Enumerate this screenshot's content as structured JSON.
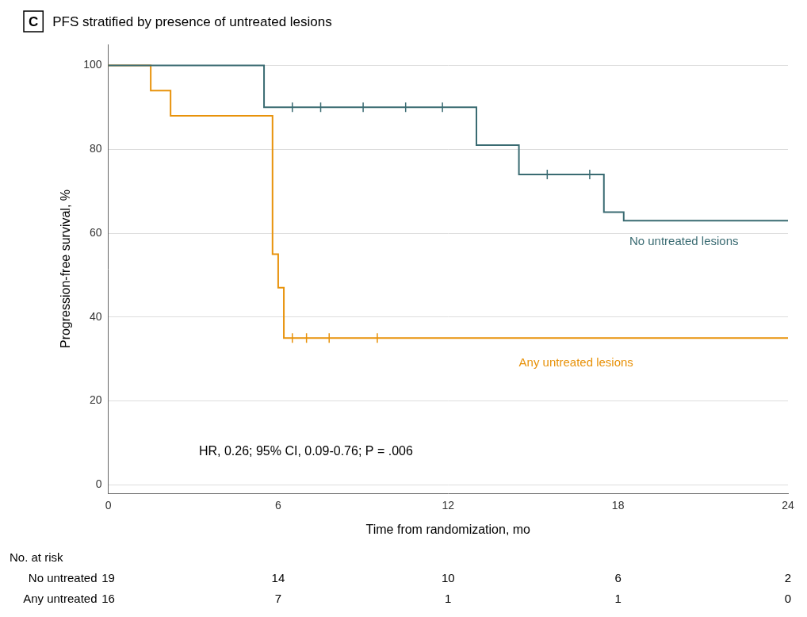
{
  "chart_data": {
    "type": "line",
    "title": "PFS stratified by presence of untreated lesions",
    "panel_label": "C",
    "x_label": "Time from randomization, mo",
    "y_label": "Progression-free survival, %",
    "xlim": [
      0,
      24
    ],
    "xticks": [
      0,
      6,
      12,
      18,
      24
    ],
    "ylim": [
      -2,
      105
    ],
    "yticks": [
      0,
      20,
      40,
      60,
      80,
      100
    ],
    "grid": "y",
    "series": [
      {
        "name": "No untreated lesions",
        "color": "#3a6b72",
        "line_style": "steps",
        "marker": "|",
        "x": [
          0,
          5.5,
          5.5,
          6.2,
          9.0,
          11.0,
          13.0,
          13.0,
          14.5,
          14.5,
          17.5,
          17.5,
          18.2,
          18.2,
          24.0
        ],
        "values": [
          100,
          100,
          90,
          90,
          90,
          90,
          90,
          81,
          81,
          74,
          74,
          65,
          65,
          63,
          63
        ],
        "censors_x": [
          6.5,
          7.5,
          9.0,
          10.5,
          11.8,
          15.5,
          17.0
        ],
        "censors_values": [
          90,
          90,
          90,
          90,
          90,
          74,
          74
        ],
        "label_x": 18.4,
        "label_y": 58
      },
      {
        "name": "Any untreated lesions",
        "color": "#e8920a",
        "line_style": "steps",
        "marker": "|",
        "x": [
          0,
          1.5,
          1.5,
          2.2,
          2.2,
          5.8,
          5.8,
          6.0,
          6.0,
          6.2,
          6.2,
          24.0
        ],
        "values": [
          100,
          100,
          94,
          94,
          88,
          88,
          55,
          55,
          47,
          47,
          35,
          35
        ],
        "censors_x": [
          6.5,
          7.0,
          7.8,
          9.5
        ],
        "censors_values": [
          35,
          35,
          35,
          35
        ],
        "label_x": 14.5,
        "label_y": 29
      }
    ],
    "annotations": [
      {
        "text": "HR, 0.26; 95% CI, 0.09-0.76; P = .006",
        "x": 3.2,
        "y": 8
      }
    ],
    "risk_table": {
      "title": "No. at risk",
      "x": [
        0,
        6,
        12,
        18,
        24
      ],
      "rows": [
        {
          "label": "No untreated",
          "values": [
            19,
            14,
            10,
            6,
            2
          ]
        },
        {
          "label": "Any untreated",
          "values": [
            16,
            7,
            1,
            1,
            0
          ]
        }
      ]
    }
  }
}
